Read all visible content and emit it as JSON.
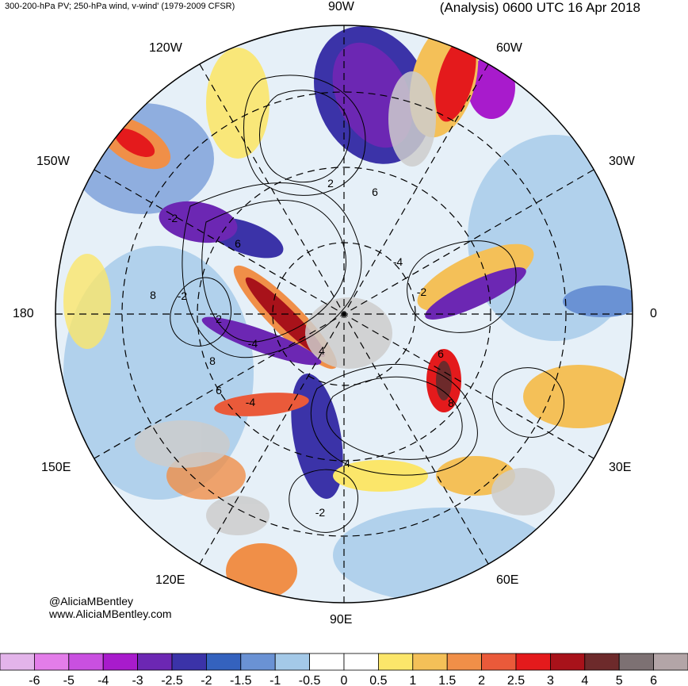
{
  "header": {
    "left_title": "300-200-hPa PV; 250-hPa wind, v-wind' (1979-2009 CFSR)",
    "right_title": "(Analysis) 0600 UTC 16 Apr 2018"
  },
  "longitude_labels": {
    "lon_90w": "90W",
    "lon_60w": "60W",
    "lon_30w": "30W",
    "lon_0": "0",
    "lon_30e": "30E",
    "lon_60e": "60E",
    "lon_90e": "90E",
    "lon_120e": "120E",
    "lon_150e": "150E",
    "lon_180": "180",
    "lon_150w": "150W",
    "lon_120w": "120W"
  },
  "contour_labels": [
    "2",
    "4",
    "6",
    "8",
    "-2",
    "-4",
    "-2",
    "6",
    "8",
    "4",
    "-2",
    "6",
    "-4",
    "-2",
    "2",
    "6",
    "8",
    "-4"
  ],
  "credit": {
    "handle": "@AliciaMBentley",
    "url": "www.AliciaMBentley.com"
  },
  "colorbar": {
    "labels": [
      "-6",
      "-5",
      "-4",
      "-3",
      "-2.5",
      "-2",
      "-1.5",
      "-1",
      "-0.5",
      "0",
      "0.5",
      "1",
      "1.5",
      "2",
      "2.5",
      "3",
      "4",
      "5",
      "6"
    ],
    "colors": [
      "#e3b4ea",
      "#e37de9",
      "#c950e0",
      "#a81bcc",
      "#6c27b3",
      "#3b33a8",
      "#3462be",
      "#6a92d4",
      "#a4c9e8",
      "#ffffff",
      "#ffffff",
      "#fbe66a",
      "#f4c058",
      "#f08f48",
      "#ea5a3a",
      "#e41a1c",
      "#a8121a",
      "#6d2a2b",
      "#7d7173",
      "#b3a5a7"
    ]
  },
  "colors": {
    "land": "#cccccc",
    "contour": "#000000",
    "grid": "#000000"
  }
}
